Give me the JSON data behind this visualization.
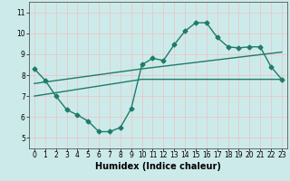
{
  "xlabel": "Humidex (Indice chaleur)",
  "bg_color": "#cdeaea",
  "line_color": "#1e7b6a",
  "grid_color": "#e8c8c8",
  "xlim": [
    -0.5,
    23.5
  ],
  "ylim": [
    4.5,
    11.5
  ],
  "yticks": [
    5,
    6,
    7,
    8,
    9,
    10,
    11
  ],
  "xticks": [
    0,
    1,
    2,
    3,
    4,
    5,
    6,
    7,
    8,
    9,
    10,
    11,
    12,
    13,
    14,
    15,
    16,
    17,
    18,
    19,
    20,
    21,
    22,
    23
  ],
  "line1_x": [
    0,
    1,
    2,
    3,
    4,
    5,
    6,
    7,
    8,
    9,
    10,
    11,
    12,
    13,
    14,
    15,
    16,
    17,
    18,
    19,
    20,
    21,
    22,
    23
  ],
  "line1_y": [
    8.3,
    7.75,
    7.0,
    6.35,
    6.1,
    5.8,
    5.3,
    5.3,
    5.5,
    6.4,
    8.5,
    8.8,
    8.7,
    9.45,
    10.1,
    10.5,
    10.5,
    9.8,
    9.35,
    9.3,
    9.35,
    9.35,
    8.4,
    7.8
  ],
  "line2_x": [
    0,
    10,
    23
  ],
  "line2_y": [
    7.0,
    7.8,
    7.8
  ],
  "line3_x": [
    0,
    10,
    23
  ],
  "line3_y": [
    7.6,
    8.3,
    9.1
  ],
  "marker": "D",
  "marker_size": 2.5,
  "linewidth": 1.0,
  "xlabel_fontsize": 7,
  "tick_fontsize": 5.5
}
